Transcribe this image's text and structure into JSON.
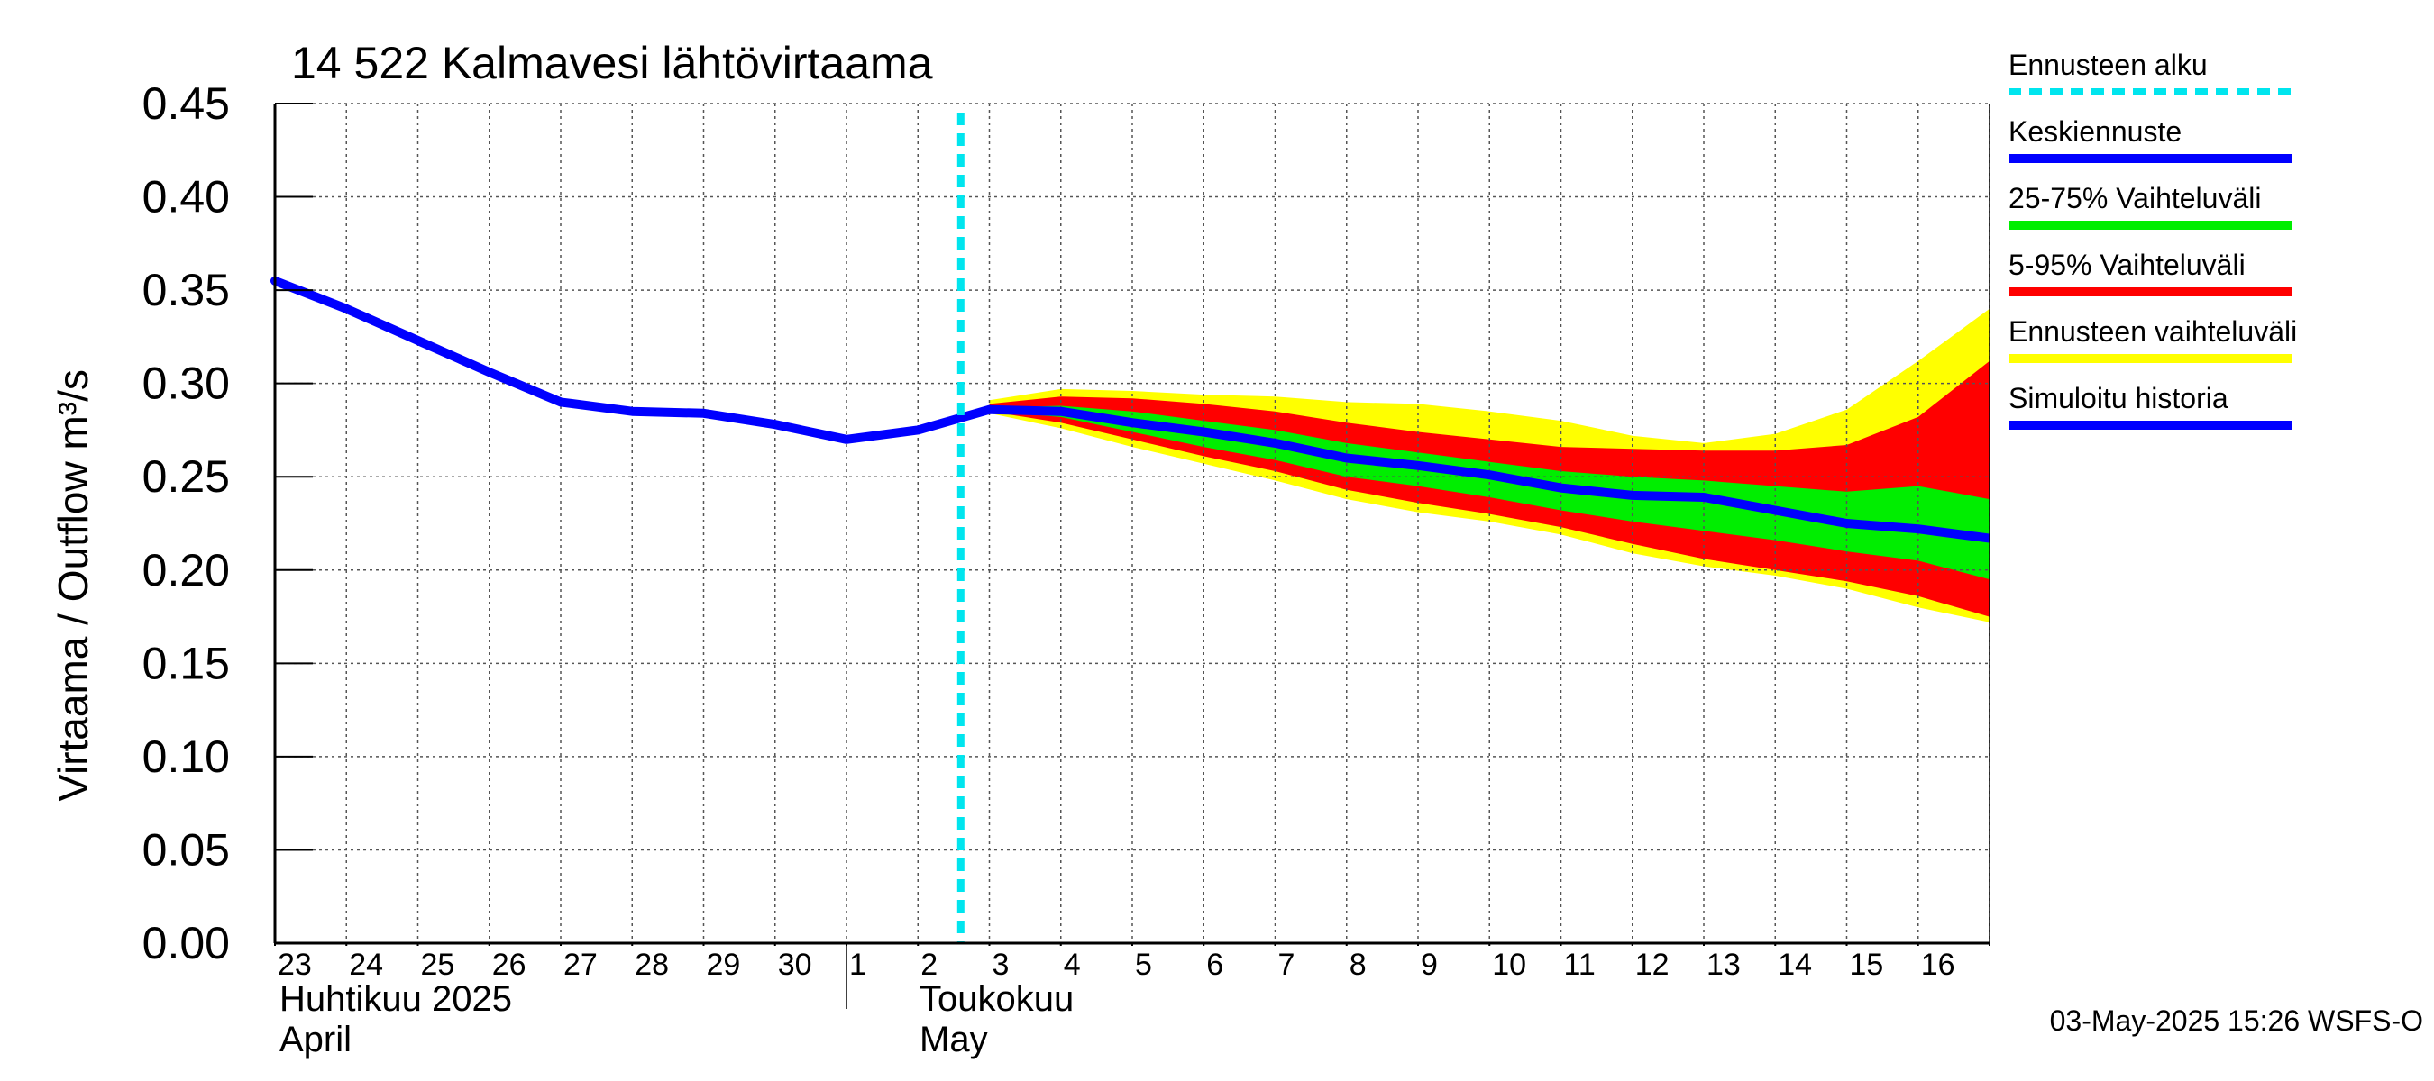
{
  "chart_data": {
    "type": "area",
    "title": "14 522 Kalmavesi lähtövirtaama",
    "ylabel": "Virtaama / Outflow    m³/s",
    "ylim": [
      0,
      0.45
    ],
    "yticks": [
      "0.00",
      "0.05",
      "0.10",
      "0.15",
      "0.20",
      "0.25",
      "0.30",
      "0.35",
      "0.40",
      "0.45"
    ],
    "xlim": [
      "2025-04-23",
      "2025-05-17"
    ],
    "day_labels": [
      "23",
      "24",
      "25",
      "26",
      "27",
      "28",
      "29",
      "30",
      "1",
      "2",
      "3",
      "4",
      "5",
      "6",
      "7",
      "8",
      "9",
      "10",
      "11",
      "12",
      "13",
      "14",
      "15",
      "16"
    ],
    "month_labels": [
      {
        "fi": "Huhtikuu  2025",
        "en": "April"
      },
      {
        "fi": "Toukokuu",
        "en": "May"
      }
    ],
    "forecast_start": "2025-05-03",
    "grid": true,
    "legend_position": "right",
    "x": [
      "2025-05-03",
      "2025-05-04",
      "2025-05-05",
      "2025-05-06",
      "2025-05-07",
      "2025-05-08",
      "2025-05-09",
      "2025-05-10",
      "2025-05-11",
      "2025-05-12",
      "2025-05-13",
      "2025-05-14",
      "2025-05-15",
      "2025-05-16",
      "2025-05-17"
    ],
    "history": {
      "x": [
        "2025-04-23",
        "2025-04-24",
        "2025-04-25",
        "2025-04-26",
        "2025-04-27",
        "2025-04-28",
        "2025-04-29",
        "2025-04-30",
        "2025-05-01",
        "2025-05-02",
        "2025-05-03"
      ],
      "values": [
        0.355,
        0.34,
        0.323,
        0.306,
        0.29,
        0.285,
        0.284,
        0.278,
        0.27,
        0.275,
        0.286
      ]
    },
    "series": [
      {
        "name": "Ennusteen vaihteluväli",
        "color": "#ffff00",
        "upper": [
          0.291,
          0.297,
          0.296,
          0.294,
          0.293,
          0.29,
          0.289,
          0.285,
          0.28,
          0.272,
          0.268,
          0.273,
          0.286,
          0.312,
          0.34
        ],
        "lower": [
          0.284,
          0.276,
          0.266,
          0.257,
          0.248,
          0.238,
          0.231,
          0.226,
          0.219,
          0.209,
          0.202,
          0.197,
          0.19,
          0.18,
          0.172
        ]
      },
      {
        "name": "5-95% Vaihteluväli",
        "color": "#ff0000",
        "upper": [
          0.289,
          0.293,
          0.292,
          0.289,
          0.285,
          0.279,
          0.274,
          0.27,
          0.266,
          0.265,
          0.264,
          0.264,
          0.267,
          0.282,
          0.312
        ],
        "lower": [
          0.285,
          0.279,
          0.27,
          0.261,
          0.253,
          0.243,
          0.236,
          0.23,
          0.223,
          0.214,
          0.206,
          0.2,
          0.194,
          0.186,
          0.175
        ]
      },
      {
        "name": "25-75% Vaihteluväli",
        "color": "#00ee00",
        "upper": [
          0.287,
          0.288,
          0.285,
          0.28,
          0.275,
          0.268,
          0.263,
          0.258,
          0.253,
          0.25,
          0.248,
          0.245,
          0.242,
          0.245,
          0.238
        ]
      },
      {
        "name": "Keskiennuste",
        "color": "#0000ff",
        "values": [
          0.286,
          0.285,
          0.279,
          0.274,
          0.268,
          0.26,
          0.256,
          0.251,
          0.244,
          0.24,
          0.239,
          0.232,
          0.225,
          0.222,
          0.217
        ]
      }
    ],
    "band_25_75_lower": [
      0.285,
      0.282,
      0.274,
      0.266,
      0.259,
      0.25,
      0.245,
      0.239,
      0.232,
      0.226,
      0.221,
      0.216,
      0.21,
      0.205,
      0.195
    ],
    "legend": [
      {
        "label": "Ennusteen alku",
        "color": "#00e5ee",
        "style": "dashed"
      },
      {
        "label": "Keskiennuste",
        "color": "#0000ff",
        "style": "solid"
      },
      {
        "label": "25-75% Vaihteluväli",
        "color": "#00ee00",
        "style": "solid"
      },
      {
        "label": "5-95% Vaihteluväli",
        "color": "#ff0000",
        "style": "solid"
      },
      {
        "label": "Ennusteen vaihteluväli",
        "color": "#ffff00",
        "style": "solid"
      },
      {
        "label": "Simuloitu historia",
        "color": "#0000ff",
        "style": "solid"
      }
    ],
    "timestamp": "03-May-2025 15:26 WSFS-O"
  }
}
